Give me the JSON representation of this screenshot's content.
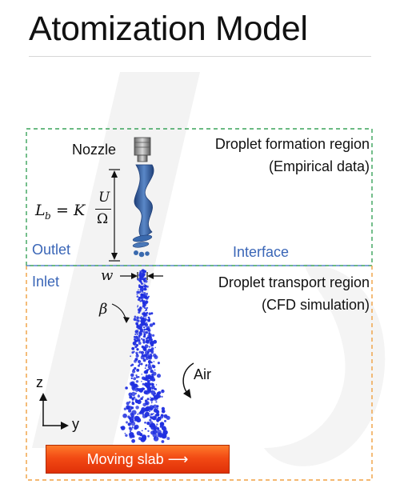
{
  "title": "Atomization Model",
  "regions": {
    "formation": {
      "label": "Droplet formation region",
      "sub": "(Empirical data)",
      "border_color": "#3aa35a"
    },
    "transport": {
      "label": "Droplet transport region",
      "sub": "(CFD simulation)",
      "border_color": "#f0a040"
    },
    "interface_color": "#5a86c8"
  },
  "labels": {
    "nozzle": "Nozzle",
    "outlet": "Outlet",
    "inlet": "Inlet",
    "interface": "Interface",
    "air": "Air",
    "axis_z": "z",
    "axis_y": "y"
  },
  "symbols": {
    "width": "w",
    "angle": "β"
  },
  "equation": {
    "lhs": "L",
    "lhs_sub": "b",
    "equals": "= K",
    "numerator": "U",
    "denominator": "Ω"
  },
  "slab": {
    "label": "Moving slab",
    "arrow": "⟶"
  },
  "colors": {
    "jet": "#2f5f96",
    "droplets": "#1f2fe0",
    "slab": "#f24a14"
  }
}
